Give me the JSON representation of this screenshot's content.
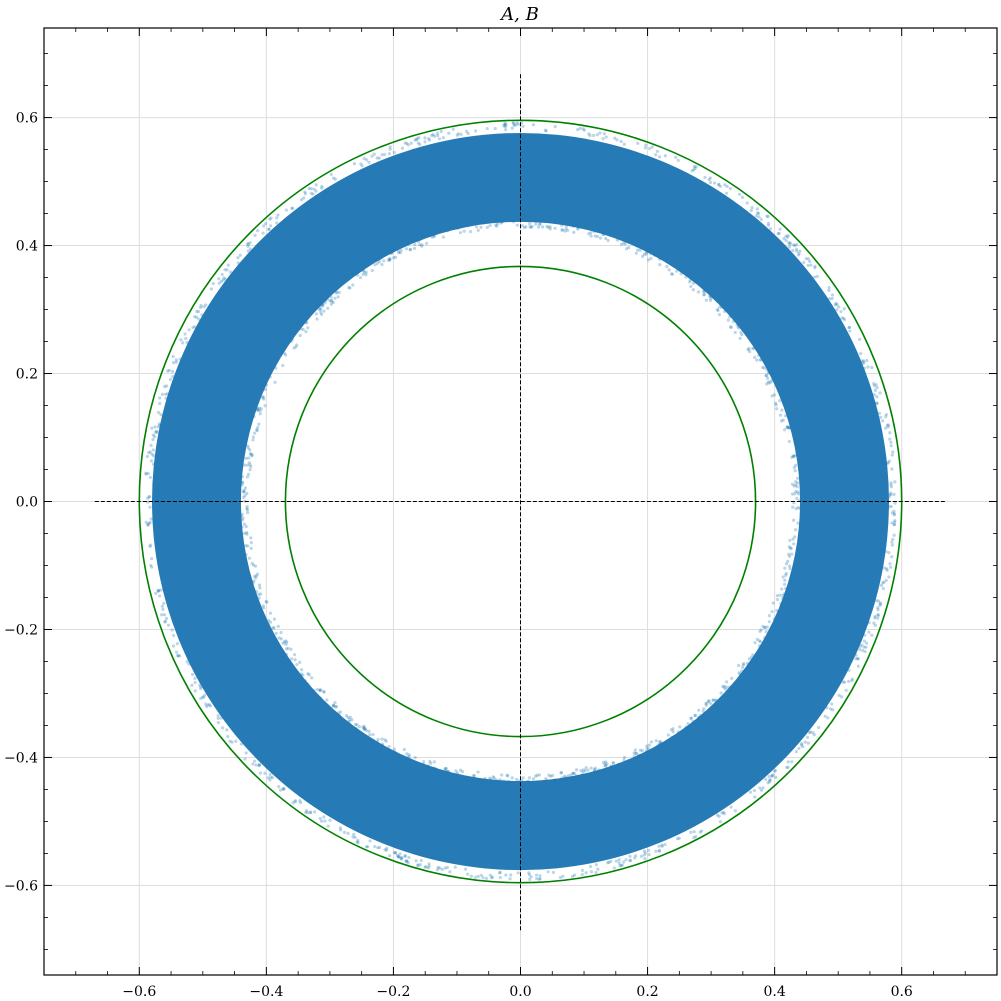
{
  "chart_data": {
    "type": "scatter",
    "title": "A, B",
    "xlabel": "",
    "ylabel": "",
    "xlim": [
      -0.75,
      0.75
    ],
    "ylim": [
      -0.74,
      0.74
    ],
    "x_ticks": [
      -0.6,
      -0.4,
      -0.2,
      0.0,
      0.2,
      0.4,
      0.6
    ],
    "y_ticks": [
      -0.6,
      -0.4,
      -0.2,
      0.0,
      0.2,
      0.4,
      0.6
    ],
    "x_tick_labels": [
      "−0.6",
      "−0.4",
      "−0.2",
      "0.0",
      "0.2",
      "0.4",
      "0.6"
    ],
    "y_tick_labels": [
      "−0.6",
      "−0.4",
      "−0.2",
      "0.0",
      "0.2",
      "0.4",
      "0.6"
    ],
    "grid": true,
    "scatter_ring": {
      "description": "dense annulus of points",
      "inner_radius": 0.44,
      "outer_radius": 0.58,
      "color": "#1f77b4",
      "alpha": 0.3
    },
    "circles": [
      {
        "radius": 0.6,
        "color": "#008000"
      },
      {
        "radius": 0.37,
        "color": "#008000"
      }
    ],
    "reference_lines": [
      {
        "orientation": "horizontal",
        "value": 0.0,
        "from": -0.67,
        "to": 0.67,
        "style": "dashed",
        "color": "#000000"
      },
      {
        "orientation": "vertical",
        "value": 0.0,
        "from": -0.67,
        "to": 0.67,
        "style": "dashed",
        "color": "#000000"
      }
    ]
  }
}
